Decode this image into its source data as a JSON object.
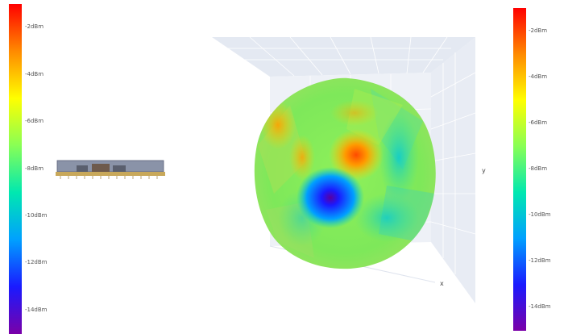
{
  "chart_data": {
    "type": "surface3d",
    "title": "",
    "colorbar": {
      "ticks": [
        "-2dBm",
        "-4dBm",
        "-6dBm",
        "-8dBm",
        "-10dBm",
        "-12dBm",
        "-14dBm"
      ],
      "tick_values": [
        -2,
        -4,
        -6,
        -8,
        -10,
        -12,
        -14
      ],
      "range": [
        -15,
        -1
      ],
      "colors": [
        "#ff0000",
        "#ff8a00",
        "#ffff00",
        "#88ff55",
        "#00e8b0",
        "#00a0ff",
        "#1a1aff",
        "#7a00a8"
      ]
    },
    "axes": {
      "x_label": "x",
      "y_label": "y",
      "z_label": ""
    },
    "pattern": {
      "peak_dBm": -3,
      "null_dBm": -14,
      "typical_dBm": -7
    }
  },
  "device": {
    "icon": "antenna-module-icon"
  }
}
